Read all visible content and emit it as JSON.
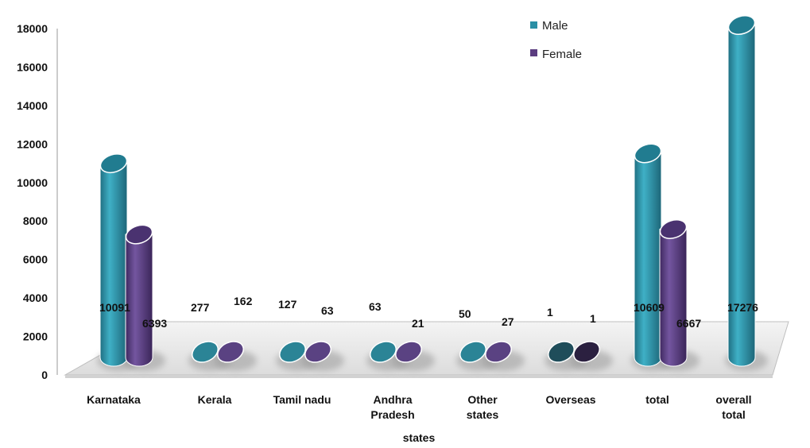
{
  "chart_data": {
    "type": "bar",
    "categories": [
      "Karnataka",
      "Kerala",
      "Tamil nadu",
      "Andhra Pradesh",
      "Other states",
      "Overseas",
      "total",
      "overall total"
    ],
    "series": [
      {
        "name": "Male",
        "values": [
          10091,
          277,
          127,
          63,
          50,
          1,
          10609,
          17276
        ],
        "labels": [
          "10091",
          "277",
          "127",
          "63",
          "50",
          "1",
          "10609",
          "17276"
        ]
      },
      {
        "name": "Female",
        "values": [
          6393,
          162,
          63,
          21,
          27,
          1,
          6667,
          null
        ],
        "labels": [
          "6393",
          "162",
          "63",
          "21",
          "27",
          "1",
          "6667",
          ""
        ]
      }
    ],
    "yticks": [
      "0",
      "2000",
      "4000",
      "6000",
      "8000",
      "10000",
      "12000",
      "14000",
      "16000",
      "18000"
    ],
    "ylim": [
      0,
      18000
    ],
    "xlabel": "states",
    "ylabel": "",
    "legend": "top-right",
    "colors": {
      "Male": "#2a8fa5",
      "Female": "#5b3d80"
    }
  }
}
